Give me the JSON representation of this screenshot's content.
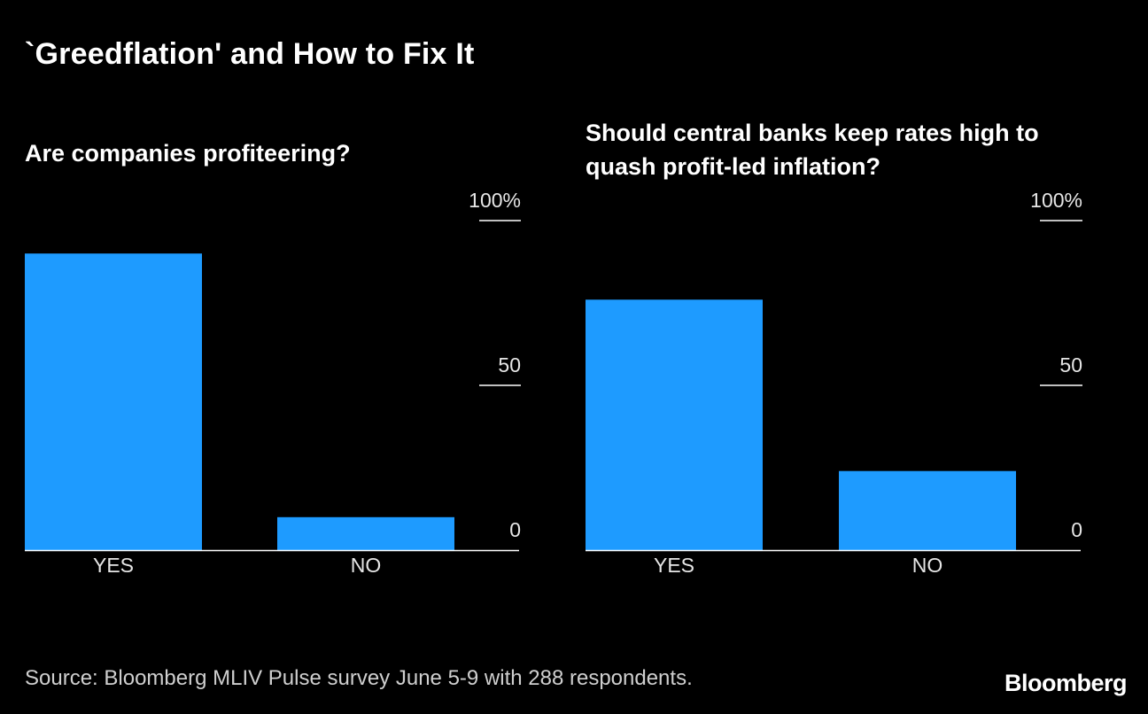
{
  "title": "`Greedflation' and How to Fix It",
  "source": "Source: Bloomberg MLIV Pulse survey June 5-9 with 288 respondents.",
  "brand": "Bloomberg",
  "colors": {
    "bar": "#1e9bff",
    "background": "#000000",
    "text": "#ffffff",
    "axis": "#ffffff"
  },
  "chart_data": [
    {
      "type": "bar",
      "title": "Are companies profiteering?",
      "categories": [
        "YES",
        "NO"
      ],
      "values": [
        90,
        10
      ],
      "ylim": [
        0,
        100
      ],
      "yticks": [
        0,
        50,
        100
      ],
      "ytick_labels": [
        "0",
        "50",
        "100%"
      ],
      "xlabel": "",
      "ylabel": "",
      "axis_side": "right"
    },
    {
      "type": "bar",
      "title": "Should central banks keep rates high to quash profit-led inflation?",
      "categories": [
        "YES",
        "NO"
      ],
      "values": [
        76,
        24
      ],
      "ylim": [
        0,
        100
      ],
      "yticks": [
        0,
        50,
        100
      ],
      "ytick_labels": [
        "0",
        "50",
        "100%"
      ],
      "xlabel": "",
      "ylabel": "",
      "axis_side": "right"
    }
  ]
}
